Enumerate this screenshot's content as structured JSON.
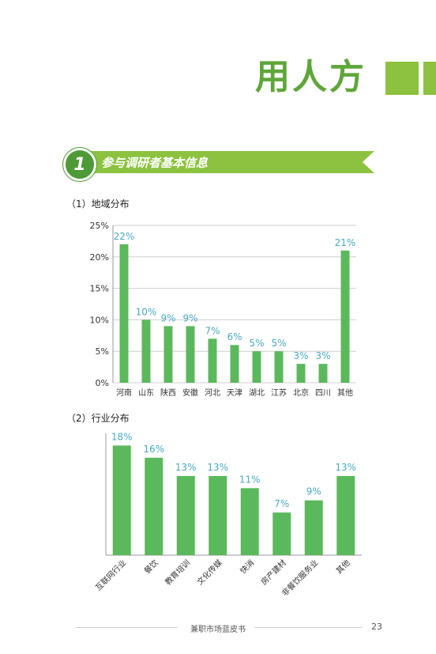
{
  "page": {
    "title": "用人方",
    "section_number": "1",
    "section_title": "参与调研者基本信息",
    "footer_text": "兼职市场蓝皮书",
    "page_number": "23",
    "accent_color": "#8cc23f",
    "bar_color": "#5cb85c",
    "label_color": "#4aa9c2"
  },
  "chart1_title": "（1）地域分布",
  "chart2_title": "（2）行业分布",
  "chart_data": [
    {
      "type": "bar",
      "categories": [
        "河南",
        "山东",
        "陕西",
        "安徽",
        "河北",
        "天津",
        "湖北",
        "江苏",
        "北京",
        "四川",
        "其他"
      ],
      "values": [
        22,
        10,
        9,
        9,
        7,
        6,
        5,
        5,
        3,
        3,
        21
      ],
      "value_labels": [
        "22%",
        "10%",
        "9%",
        "9%",
        "7%",
        "6%",
        "5%",
        "5%",
        "3%",
        "3%",
        "21%"
      ],
      "yticks": [
        "0%",
        "5%",
        "10%",
        "15%",
        "20%",
        "25%"
      ],
      "ylim": [
        0,
        25
      ],
      "grid": true
    },
    {
      "type": "bar",
      "categories": [
        "互联网行业",
        "餐饮",
        "教育培训",
        "文化传媒",
        "快消",
        "房产建材",
        "非餐饮服务业",
        "其他"
      ],
      "values": [
        18,
        16,
        13,
        13,
        11,
        7,
        9,
        13
      ],
      "value_labels": [
        "18%",
        "16%",
        "13%",
        "13%",
        "11%",
        "7%",
        "9%",
        "13%"
      ],
      "ylim": [
        0,
        20
      ],
      "grid": false
    }
  ]
}
